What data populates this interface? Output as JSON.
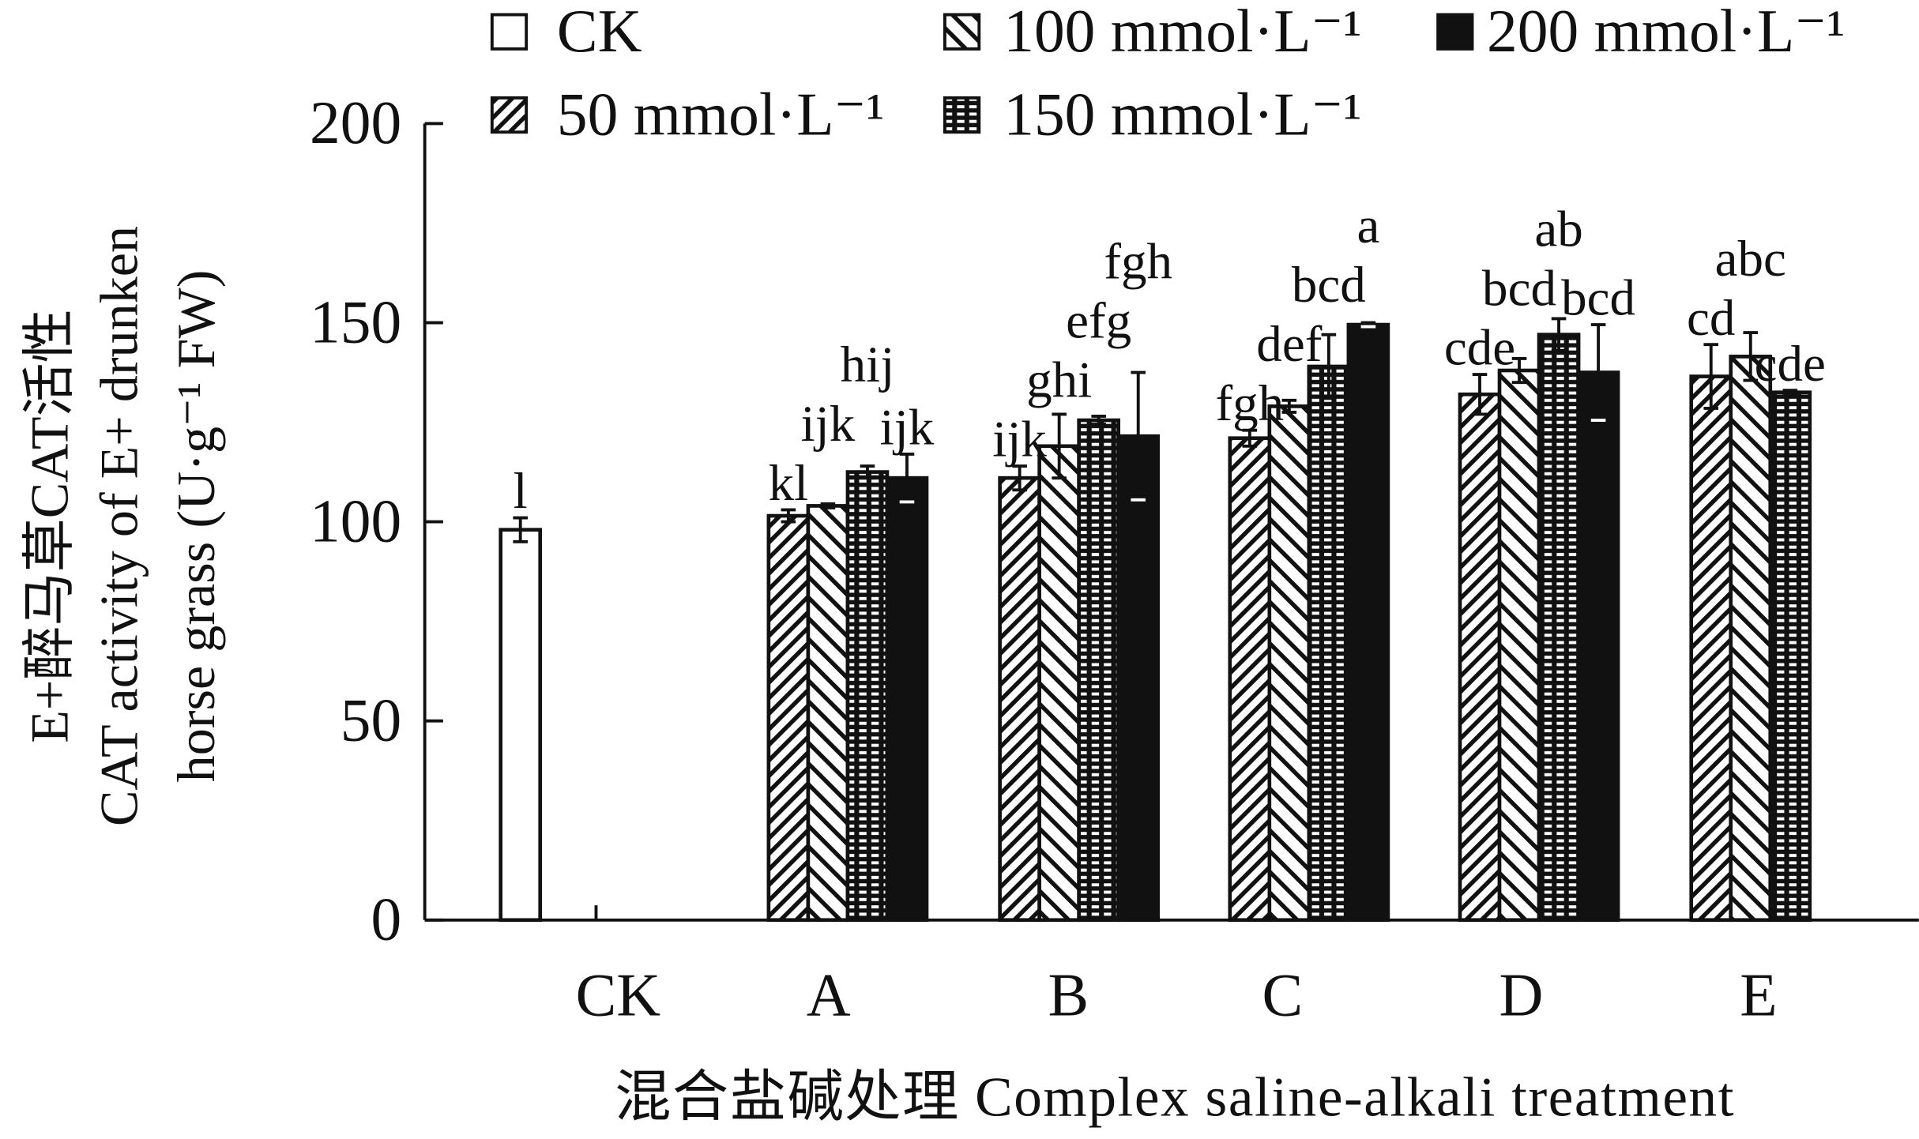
{
  "chart_data": {
    "type": "bar",
    "title": "",
    "xlabel": "混合盐碱处理 Complex saline-alkali treatment",
    "ylabel_lines": [
      "E+醉马草CAT活性",
      "CAT activity of E+ drunken",
      "horse grass (U·g⁻¹ FW)"
    ],
    "ylim": [
      0,
      200
    ],
    "yticks": [
      "0",
      "50",
      "100",
      "150",
      "200"
    ],
    "categories": [
      "CK",
      "A",
      "B",
      "C",
      "D",
      "E"
    ],
    "legend_placement": "top",
    "series": [
      {
        "name": "CK",
        "pattern": "empty",
        "values": [
          98,
          null,
          null,
          null,
          null,
          null
        ],
        "errors": [
          3,
          null,
          null,
          null,
          null,
          null
        ],
        "letters": [
          "l",
          "",
          "",
          "",
          "",
          ""
        ]
      },
      {
        "name": "50 mmol·L⁻¹",
        "pattern": "diagonal-up",
        "values": [
          null,
          101.5,
          111,
          121,
          132,
          136.5
        ],
        "errors": [
          null,
          1.5,
          3,
          2,
          5,
          8
        ],
        "letters": [
          "",
          "kl",
          "ijk",
          "fgh",
          "cde",
          "cd"
        ]
      },
      {
        "name": "100 mmol·L⁻¹",
        "pattern": "diagonal-down",
        "values": [
          null,
          104,
          119,
          129,
          138,
          141.5
        ],
        "errors": [
          null,
          0.5,
          8,
          1.5,
          3,
          6
        ],
        "letters": [
          "",
          "ijk",
          "ghi",
          "def",
          "bcd",
          "abc"
        ]
      },
      {
        "name": "150 mmol·L⁻¹",
        "pattern": "dashes",
        "values": [
          null,
          112.5,
          125.5,
          139,
          147,
          132.5
        ],
        "errors": [
          null,
          1.5,
          1,
          8,
          4,
          0.5
        ],
        "letters": [
          "",
          "hij",
          "efg",
          "bcd",
          "ab",
          "cde"
        ]
      },
      {
        "name": "200 mmol·L⁻¹",
        "pattern": "solid",
        "values": [
          null,
          111,
          121.5,
          149.5,
          137.5,
          null
        ],
        "errors": [
          null,
          6,
          16,
          0.5,
          12,
          null
        ],
        "letters": [
          "",
          "ijk",
          "fgh",
          "a",
          "bcd",
          ""
        ]
      }
    ]
  }
}
